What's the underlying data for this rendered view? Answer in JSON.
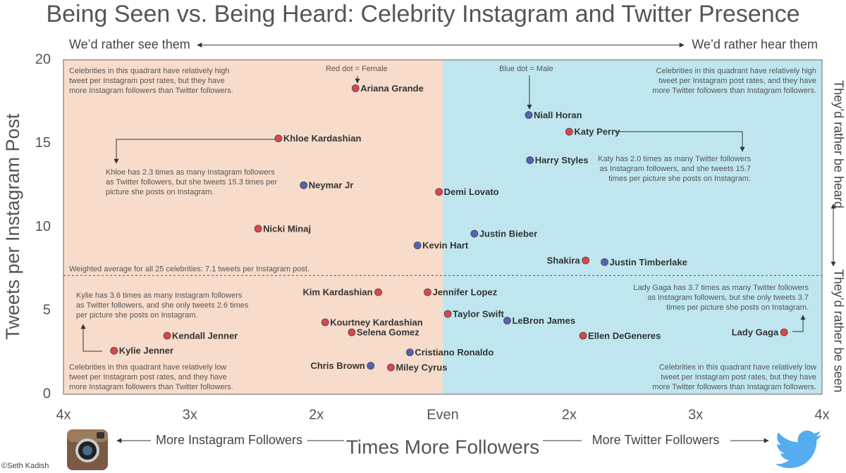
{
  "chart_data": {
    "type": "scatter",
    "title": "Being Seen vs. Being Heard: Celebrity Instagram and Twitter Presence",
    "x_label": "Times More Followers",
    "x_label_left": "More Instagram Followers",
    "x_label_right": "More Twitter Followers",
    "y_label": "Tweets per Instagram Post",
    "top_left": "We’d rather see them",
    "top_right": "We’d rather hear them",
    "right_top": "They’d rather be heard",
    "right_bottom": "They’d rather be seen",
    "credit": "©Seth Kadish",
    "xlim": [
      -3,
      3
    ],
    "ylim": [
      0,
      20
    ],
    "xticks": [
      {
        "value": -3,
        "label": "4x"
      },
      {
        "value": -2,
        "label": "3x"
      },
      {
        "value": -1,
        "label": "2x"
      },
      {
        "value": 0,
        "label": "Even"
      },
      {
        "value": 1,
        "label": "2x"
      },
      {
        "value": 2,
        "label": "3x"
      },
      {
        "value": 3,
        "label": "4x"
      }
    ],
    "yticks": [
      0,
      5,
      10,
      15,
      20
    ],
    "grid": false,
    "quadrant_colors": [
      "#f8dccb",
      "#bfe6ef"
    ],
    "average_line": {
      "value": 7.1,
      "label": "Weighted average for all 25 celebrities: 7.1 tweets per Instagram post."
    },
    "series": [
      {
        "name": "Red dot  = Female",
        "color": "#d9474b",
        "labels": [
          "Ariana Grande",
          "Khloe Kardashian",
          "Demi Lovato",
          "Nicki Minaj",
          "Katy Perry",
          "Shakira",
          "Kim Kardashian",
          "Jennifer Lopez",
          "Taylor Swift",
          "Ellen DeGeneres",
          "Lady Gaga",
          "Kourtney Kardashian",
          "Selena Gomez",
          "Kendall Jenner",
          "Kylie Jenner",
          "Miley Cyrus"
        ],
        "x": [
          -0.69,
          -1.3,
          -0.03,
          -1.46,
          1.0,
          1.13,
          -0.51,
          -0.12,
          0.04,
          1.11,
          2.7,
          -0.93,
          -0.72,
          -2.18,
          -2.6,
          -0.41
        ],
        "values": [
          18.3,
          15.3,
          12.1,
          9.9,
          15.7,
          8.0,
          6.1,
          6.1,
          4.8,
          3.5,
          3.7,
          4.3,
          3.7,
          3.5,
          2.6,
          1.6
        ]
      },
      {
        "name": "Blue dot  = Male",
        "color": "#5563b4",
        "labels": [
          "Neymar Jr",
          "Kevin Hart",
          "Niall Horan",
          "Harry Styles",
          "Justin Bieber",
          "Justin Timberlake",
          "LeBron James",
          "Cristiano Ronaldo",
          "Chris Brown"
        ],
        "x": [
          -1.1,
          -0.2,
          0.68,
          0.69,
          0.25,
          1.28,
          0.51,
          -0.26,
          -0.57
        ],
        "values": [
          12.5,
          8.9,
          16.7,
          14.0,
          9.6,
          7.9,
          4.4,
          2.5,
          1.7
        ]
      }
    ],
    "quadrant_notes": [
      [
        "Celebrities in this quadrant have relatively high",
        "tweet per Instagram post rates, but they have",
        "more Instagram followers than Twitter followers."
      ],
      [
        "Celebrities in this quadrant have relatively high",
        "tweet per Instagram post rates, and they have",
        "more Twitter followers than Instagram followers."
      ],
      [
        "Celebrities in this quadrant have relatively low",
        "tweet per Instagram post rates, and they have",
        "more Instagram followers than Twitter followers."
      ],
      [
        "Celebrities in this quadrant have relatively low",
        "tweet per Instagram post rates, but they have",
        "more Twitter followers than Instagram followers."
      ]
    ],
    "callouts": [
      [
        "Khloe has 2.3 times as many Instagram followers",
        "as Twitter followers, but she tweets 15.3 times per",
        "picture she posts on Instagram."
      ],
      [
        "Katy has 2.0 times as many Twitter followers",
        "as Instagram followers, and she tweets 15.7",
        "times per picture she posts on Instagram."
      ],
      [
        "Kylie has 3.6 times as many Instagram followers",
        "as Twitter followers, and she only tweets 2.6 times",
        "per picture she posts on Instagram."
      ],
      [
        "Lady Gaga has 3.7 times as many Twitter followers",
        "as Instagram followers, but she only tweets 3.7",
        "times per picture she posts on Instagram."
      ]
    ]
  }
}
